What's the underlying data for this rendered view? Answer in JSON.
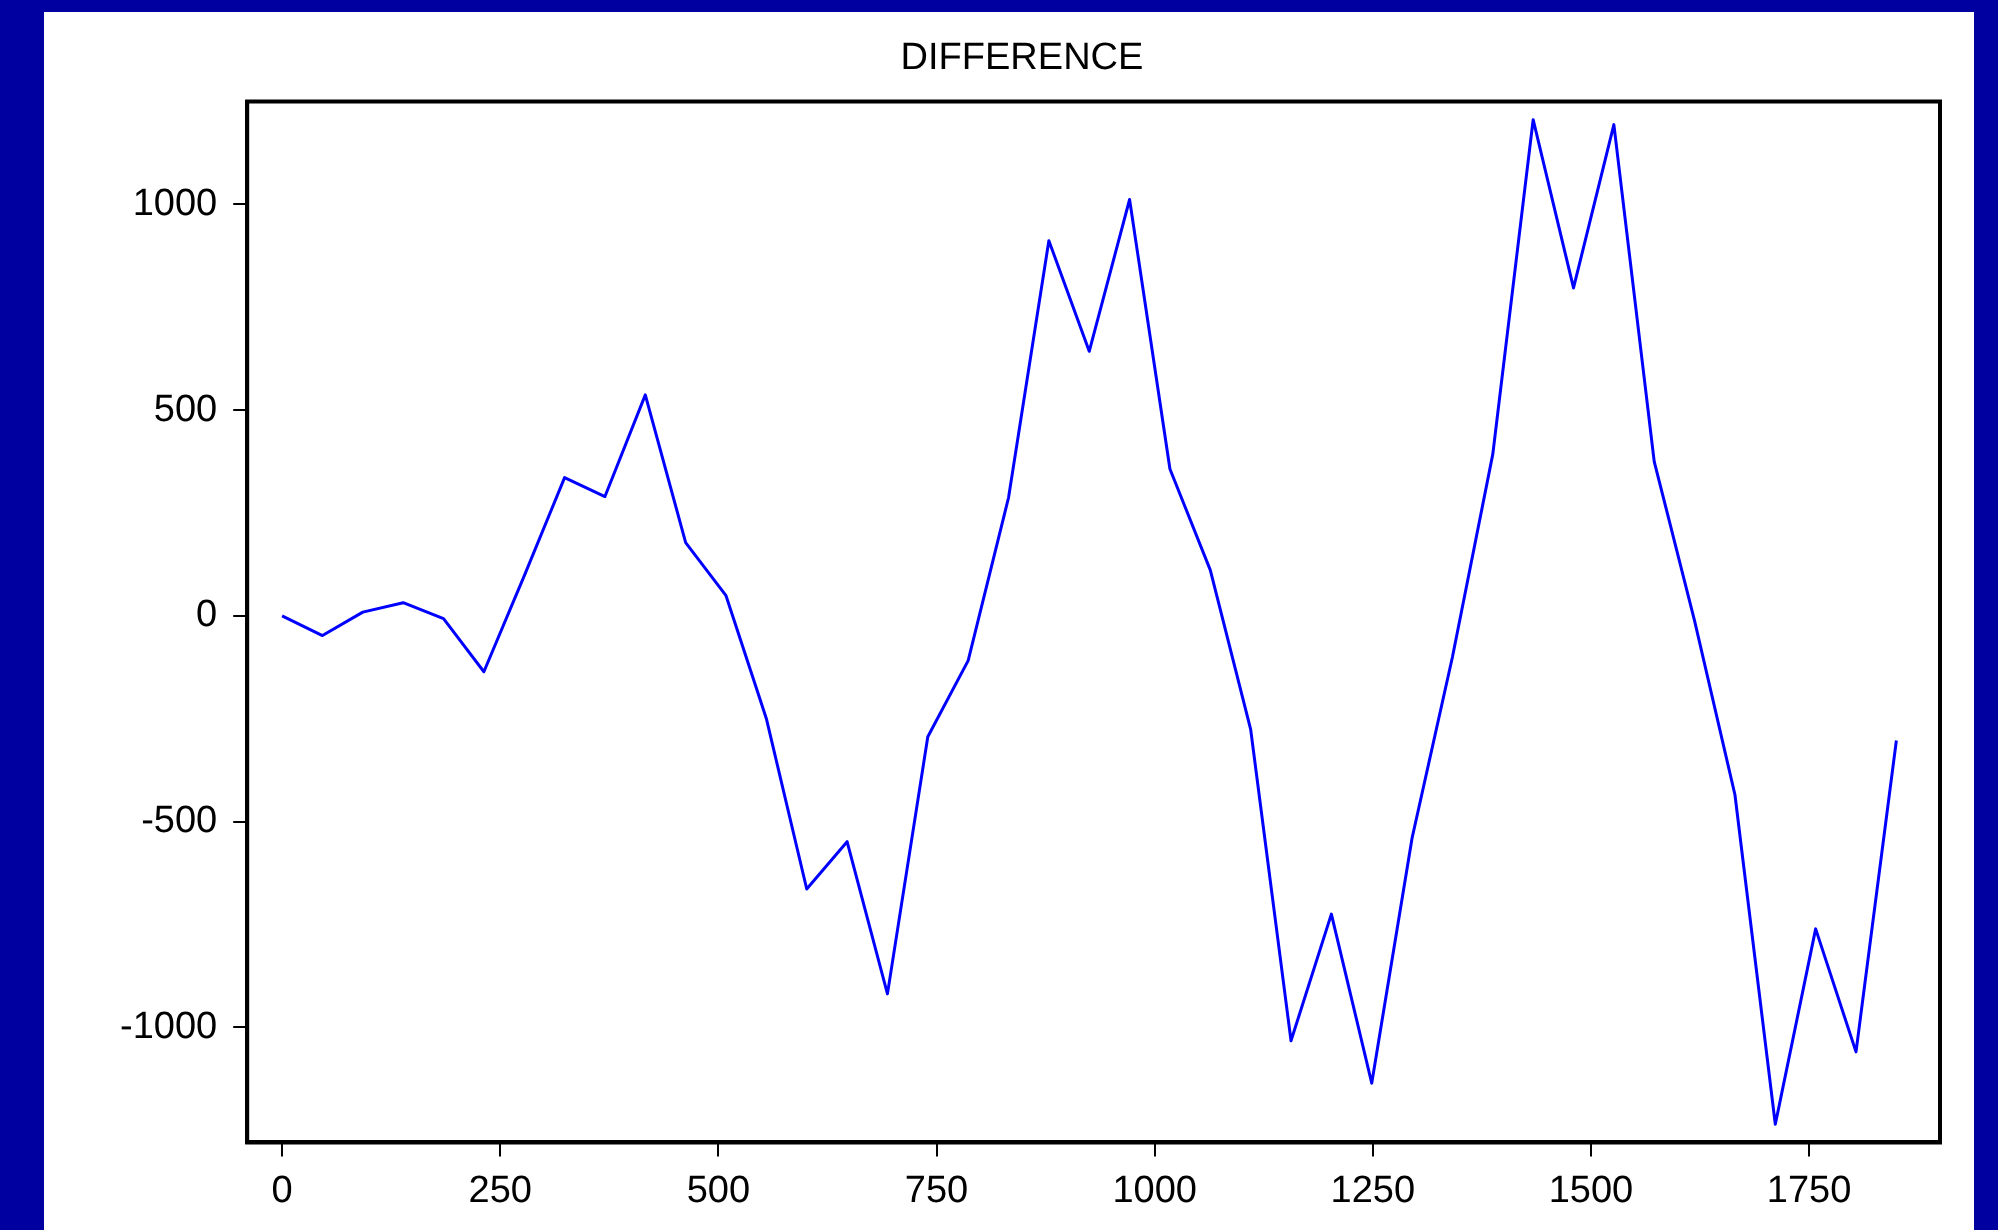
{
  "chart_data": {
    "type": "line",
    "title": "DIFFERENCE",
    "x": [
      0,
      46.25,
      92.5,
      138.75,
      185,
      231.25,
      277.5,
      323.75,
      370,
      416.25,
      462.5,
      508.75,
      555,
      601.25,
      647.5,
      693.75,
      740,
      786.25,
      832.5,
      878.75,
      925,
      971.25,
      1017.5,
      1063.75,
      1110,
      1156.25,
      1202.5,
      1248.75,
      1295,
      1341.25,
      1387.5,
      1433.75,
      1480,
      1526.25,
      1572.5,
      1618.75,
      1665,
      1711.25,
      1757.5,
      1803.75,
      1850
    ],
    "series": [
      {
        "color": "#0000ff",
        "values": [
          0,
          -48,
          9,
          32,
          -7,
          -136,
          97,
          336,
          290,
          537,
          178,
          49,
          -250,
          -664,
          -549,
          -919,
          -294,
          -109,
          287,
          912,
          643,
          1012,
          357,
          111,
          -276,
          -1033,
          -725,
          -1136,
          -540,
          -100,
          393,
          1206,
          797,
          1194,
          375,
          -12,
          -435,
          -1236,
          -761,
          -1060,
          -303
        ]
      }
    ],
    "xlim": [
      -40,
      1900
    ],
    "xticks": [
      0,
      250,
      500,
      750,
      1000,
      1250,
      1500,
      1750
    ],
    "ylim": [
      -1280,
      1250
    ],
    "yticks": [
      -1000,
      -500,
      0,
      500,
      1000
    ],
    "grid": false,
    "legend": false,
    "marker": "none",
    "line_style": "solid"
  }
}
